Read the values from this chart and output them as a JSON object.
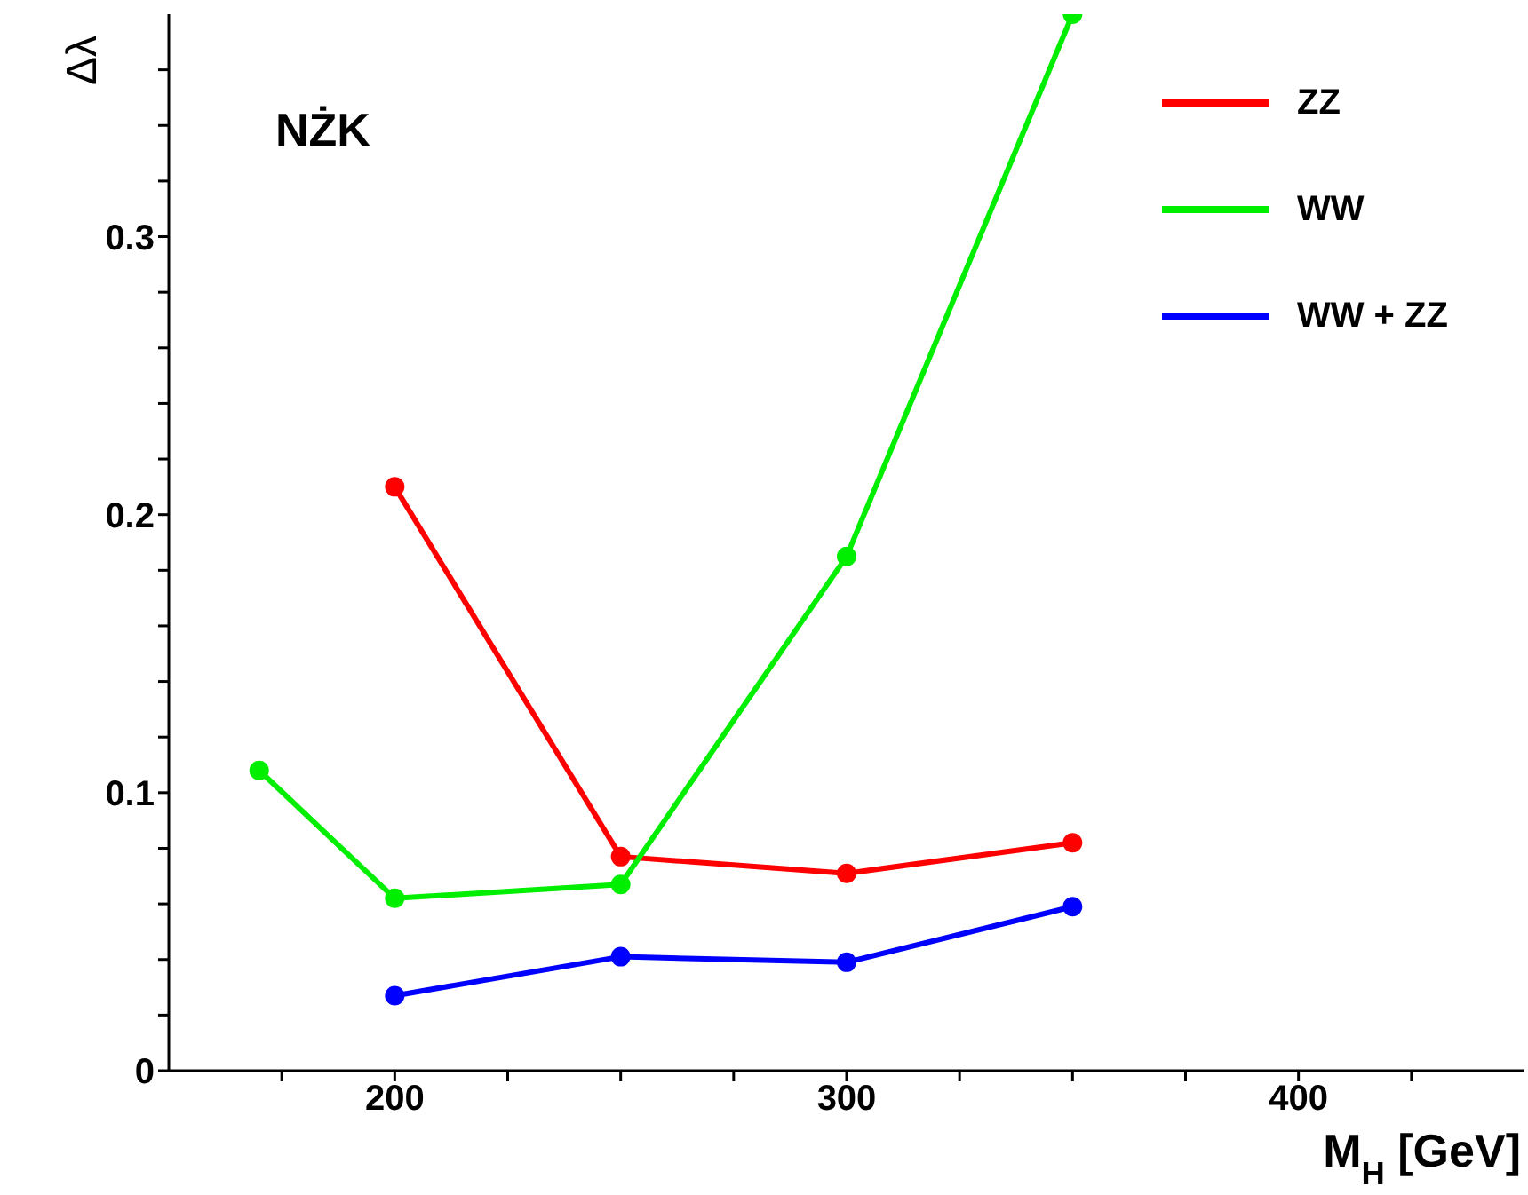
{
  "chart_data": {
    "type": "line",
    "xlabel": "M$_{H}$ [GeV]",
    "ylabel": "Δλ",
    "annotations": [
      "NŻK"
    ],
    "x": [
      170,
      200,
      250,
      300,
      350
    ],
    "series": [
      {
        "name": "ZZ",
        "color": "#ff0000",
        "values": [
          null,
          0.21,
          0.077,
          0.071,
          0.082
        ]
      },
      {
        "name": "WW",
        "color": "#00ee00",
        "values": [
          0.108,
          0.062,
          0.067,
          0.185,
          0.38
        ]
      },
      {
        "name": "WW + ZZ",
        "color": "#0000ff",
        "values": [
          null,
          0.027,
          0.041,
          0.039,
          0.059
        ]
      }
    ],
    "xlim": [
      150,
      450
    ],
    "xticks": [
      {
        "value": 175,
        "label": null
      },
      200,
      {
        "value": 225,
        "label": null
      },
      {
        "value": 250,
        "label": null
      },
      {
        "value": 275,
        "label": null
      },
      300,
      {
        "value": 325,
        "label": null
      },
      {
        "value": 350,
        "label": null
      },
      {
        "value": 375,
        "label": null
      },
      400,
      {
        "value": 425,
        "label": null
      }
    ],
    "ylim": [
      0,
      0.38
    ],
    "yticks": [
      0,
      {
        "value": 0.02,
        "label": null
      },
      {
        "value": 0.04,
        "label": null
      },
      {
        "value": 0.06,
        "label": null
      },
      {
        "value": 0.08,
        "label": null
      },
      0.1,
      {
        "value": 0.12,
        "label": null
      },
      {
        "value": 0.14,
        "label": null
      },
      {
        "value": 0.16,
        "label": null
      },
      {
        "value": 0.18,
        "label": null
      },
      0.2,
      {
        "value": 0.22,
        "label": null
      },
      {
        "value": 0.24,
        "label": null
      },
      {
        "value": 0.26,
        "label": null
      },
      {
        "value": 0.28,
        "label": null
      },
      0.3,
      {
        "value": 0.32,
        "label": null
      },
      {
        "value": 0.34,
        "label": null
      },
      {
        "value": 0.36,
        "label": null
      }
    ],
    "grid": false,
    "legend": "top right",
    "marker": "circle",
    "line_style": "solid"
  }
}
